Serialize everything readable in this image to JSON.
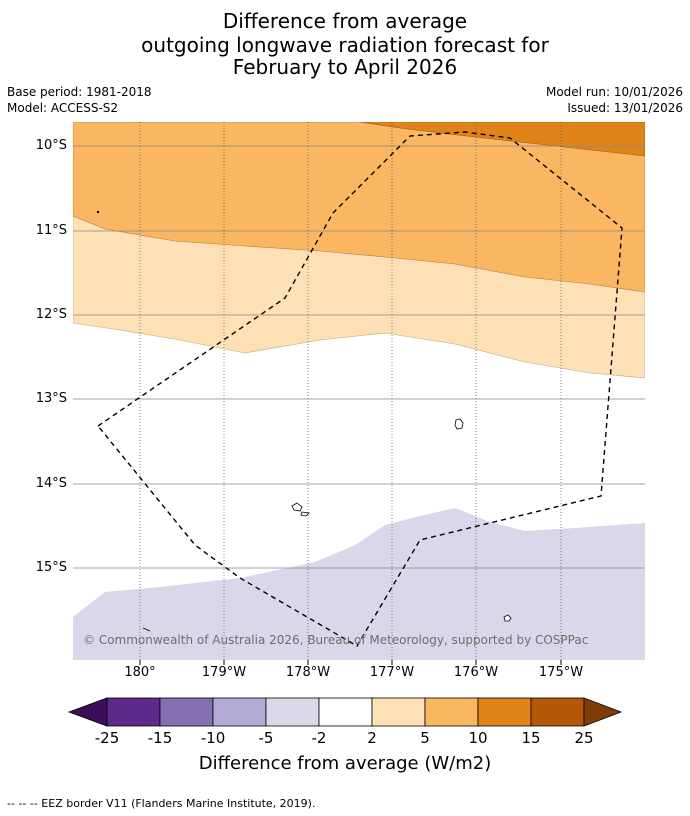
{
  "title": {
    "line1": "Difference from average",
    "line2": "outgoing longwave radiation forecast for",
    "line3": "February to April 2026"
  },
  "meta": {
    "base_period": "Base period: 1981-2018",
    "model": "Model: ACCESS-S2",
    "model_run": "Model run: 10/01/2026",
    "issued": "Issued: 13/01/2026"
  },
  "latitudes": [
    "10°S",
    "11°S",
    "12°S",
    "13°S",
    "14°S",
    "15°S"
  ],
  "longitudes": [
    "180°",
    "179°W",
    "178°W",
    "177°W",
    "176°W",
    "175°W"
  ],
  "copyright": "© Commonwealth of Australia 2026, Bureau of Meteorology, supported by COSPPac",
  "colorbar": {
    "ticks": [
      "-25",
      "-15",
      "-10",
      "-5",
      "-2",
      "2",
      "5",
      "10",
      "15",
      "25"
    ],
    "colors": [
      "#3f0e5a",
      "#5c2a8c",
      "#8270b0",
      "#b2aad3",
      "#d8d8ea",
      "#ffffff",
      "#fde0b6",
      "#fbb661",
      "#e0841a",
      "#b45706",
      "#7f3b08"
    ],
    "label": "Difference from average (W/m2)"
  },
  "legend": "--  --  -- EEZ border V11 (Flanders Marine Institute, 2019).",
  "map_colors": {
    "orange_dark": "#e0841a",
    "orange_mid": "#fbb661",
    "orange_light": "#fde0b6",
    "lavender": "#d8d8ea"
  }
}
